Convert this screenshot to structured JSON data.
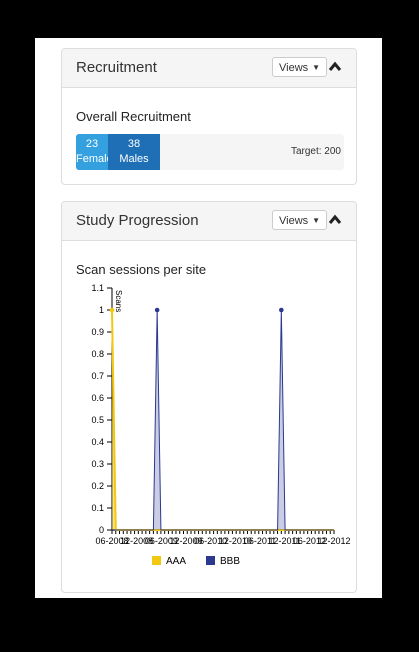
{
  "recruitment": {
    "title": "Recruitment",
    "views_label": "Views",
    "section_title": "Overall Recruitment",
    "female_count": "23",
    "female_label": "Female",
    "male_count": "38",
    "male_label": "Males",
    "target": "Target: 200"
  },
  "progression": {
    "title": "Study Progression",
    "views_label": "Views",
    "section_title": "Scan sessions per site"
  },
  "chart_data": {
    "type": "area",
    "ylabel": "Scans",
    "ylim": [
      0,
      1.1
    ],
    "y_ticks": [
      "0",
      "0.1",
      "0.2",
      "0.3",
      "0.4",
      "0.5",
      "0.6",
      "0.7",
      "0.8",
      "0.9",
      "1",
      "1.1"
    ],
    "x_tick_labels": [
      "06-2008",
      "12-2008",
      "06-2009",
      "12-2009",
      "06-2010",
      "12-2010",
      "06-2011",
      "12-2011",
      "06-2012",
      "12-2012"
    ],
    "point_count": 60,
    "series": [
      {
        "name": "AAA",
        "color": "#f2c811",
        "peaks": [
          {
            "index": 0,
            "value": 1
          }
        ]
      },
      {
        "name": "BBB",
        "color": "#2b3990",
        "peaks": [
          {
            "index": 12,
            "value": 1
          },
          {
            "index": 45,
            "value": 1
          }
        ]
      }
    ],
    "legend_position": "bottom"
  }
}
